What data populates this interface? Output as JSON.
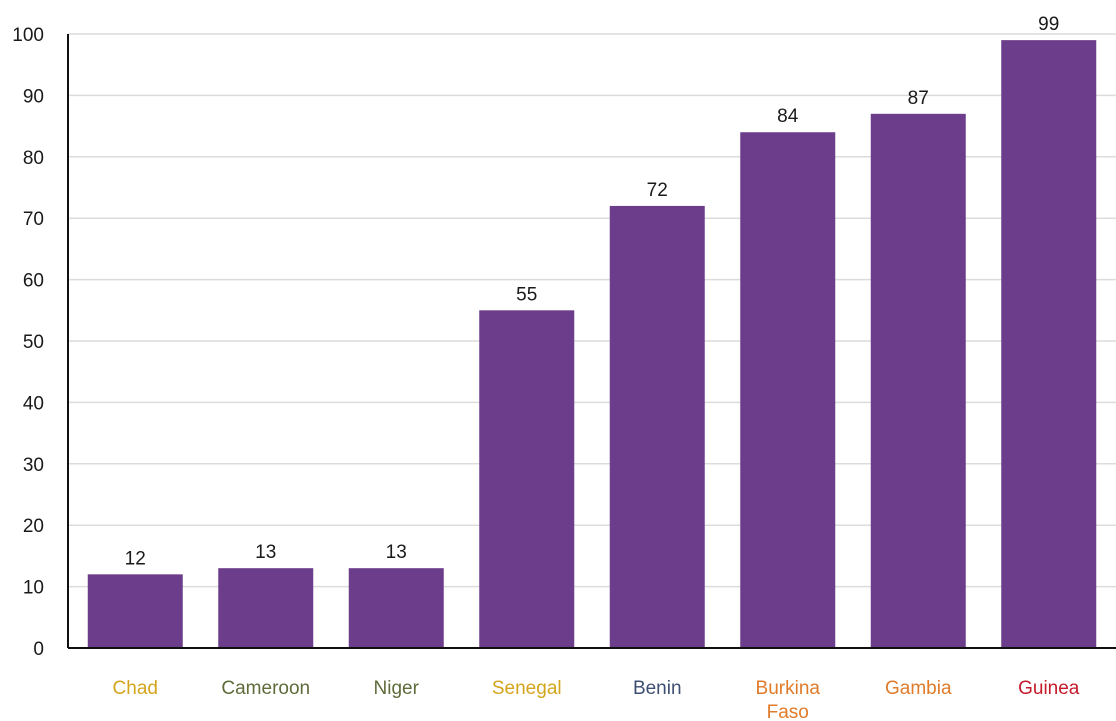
{
  "chart_data": {
    "type": "bar",
    "title": "",
    "xlabel": "",
    "ylabel": "",
    "ylim": [
      0,
      100
    ],
    "yticks": [
      0,
      10,
      20,
      30,
      40,
      50,
      60,
      70,
      80,
      90,
      100
    ],
    "grid": true,
    "bar_color": "#6c3d8a",
    "categories": [
      {
        "label_lines": [
          "Chad"
        ],
        "value": 12,
        "value_label": "12",
        "label_color": "#d4a51c"
      },
      {
        "label_lines": [
          "Cameroon"
        ],
        "value": 13,
        "value_label": "13",
        "label_color": "#5e6b3a"
      },
      {
        "label_lines": [
          "Niger"
        ],
        "value": 13,
        "value_label": "13",
        "label_color": "#5e6b3a"
      },
      {
        "label_lines": [
          "Senegal"
        ],
        "value": 55,
        "value_label": "55",
        "label_color": "#d4a51c"
      },
      {
        "label_lines": [
          "Benin"
        ],
        "value": 72,
        "value_label": "72",
        "label_color": "#3d4f73"
      },
      {
        "label_lines": [
          "Burkina",
          "Faso"
        ],
        "value": 84,
        "value_label": "84",
        "label_color": "#e07b2a"
      },
      {
        "label_lines": [
          "Gambia"
        ],
        "value": 87,
        "value_label": "87",
        "label_color": "#e07b2a"
      },
      {
        "label_lines": [
          "Guinea"
        ],
        "value": 99,
        "value_label": "99",
        "label_color": "#c41a2a"
      }
    ]
  }
}
